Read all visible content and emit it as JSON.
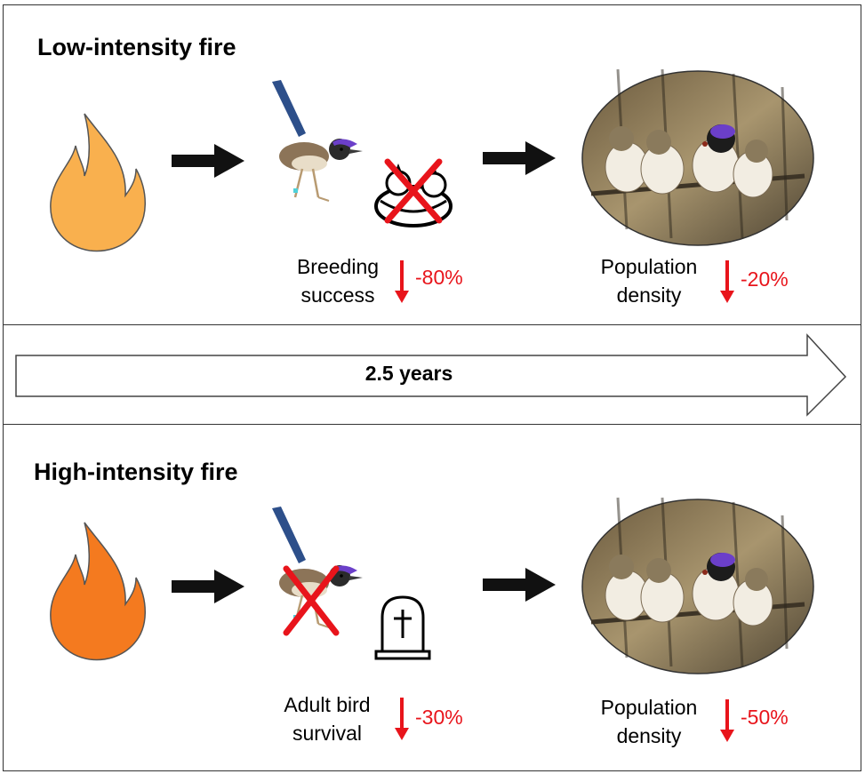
{
  "low": {
    "title": "Low-intensity fire",
    "effect1": {
      "label_line1": "Breeding",
      "label_line2": "success",
      "change": "-80%"
    },
    "effect2": {
      "label_line1": "Population",
      "label_line2": "density",
      "change": "-20%"
    },
    "fire_color": "#f9b04e"
  },
  "timeline": {
    "label": "2.5 years"
  },
  "high": {
    "title": "High-intensity fire",
    "effect1": {
      "label_line1": "Adult bird",
      "label_line2": "survival",
      "change": "-30%"
    },
    "effect2": {
      "label_line1": "Population",
      "label_line2": "density",
      "change": "-50%"
    },
    "fire_color": "#f47a1f"
  },
  "colors": {
    "decrease": "#e8141b",
    "cross": "#e8141b",
    "wren_blue": "#2d4f8a",
    "wren_purple": "#6b3fc9"
  }
}
